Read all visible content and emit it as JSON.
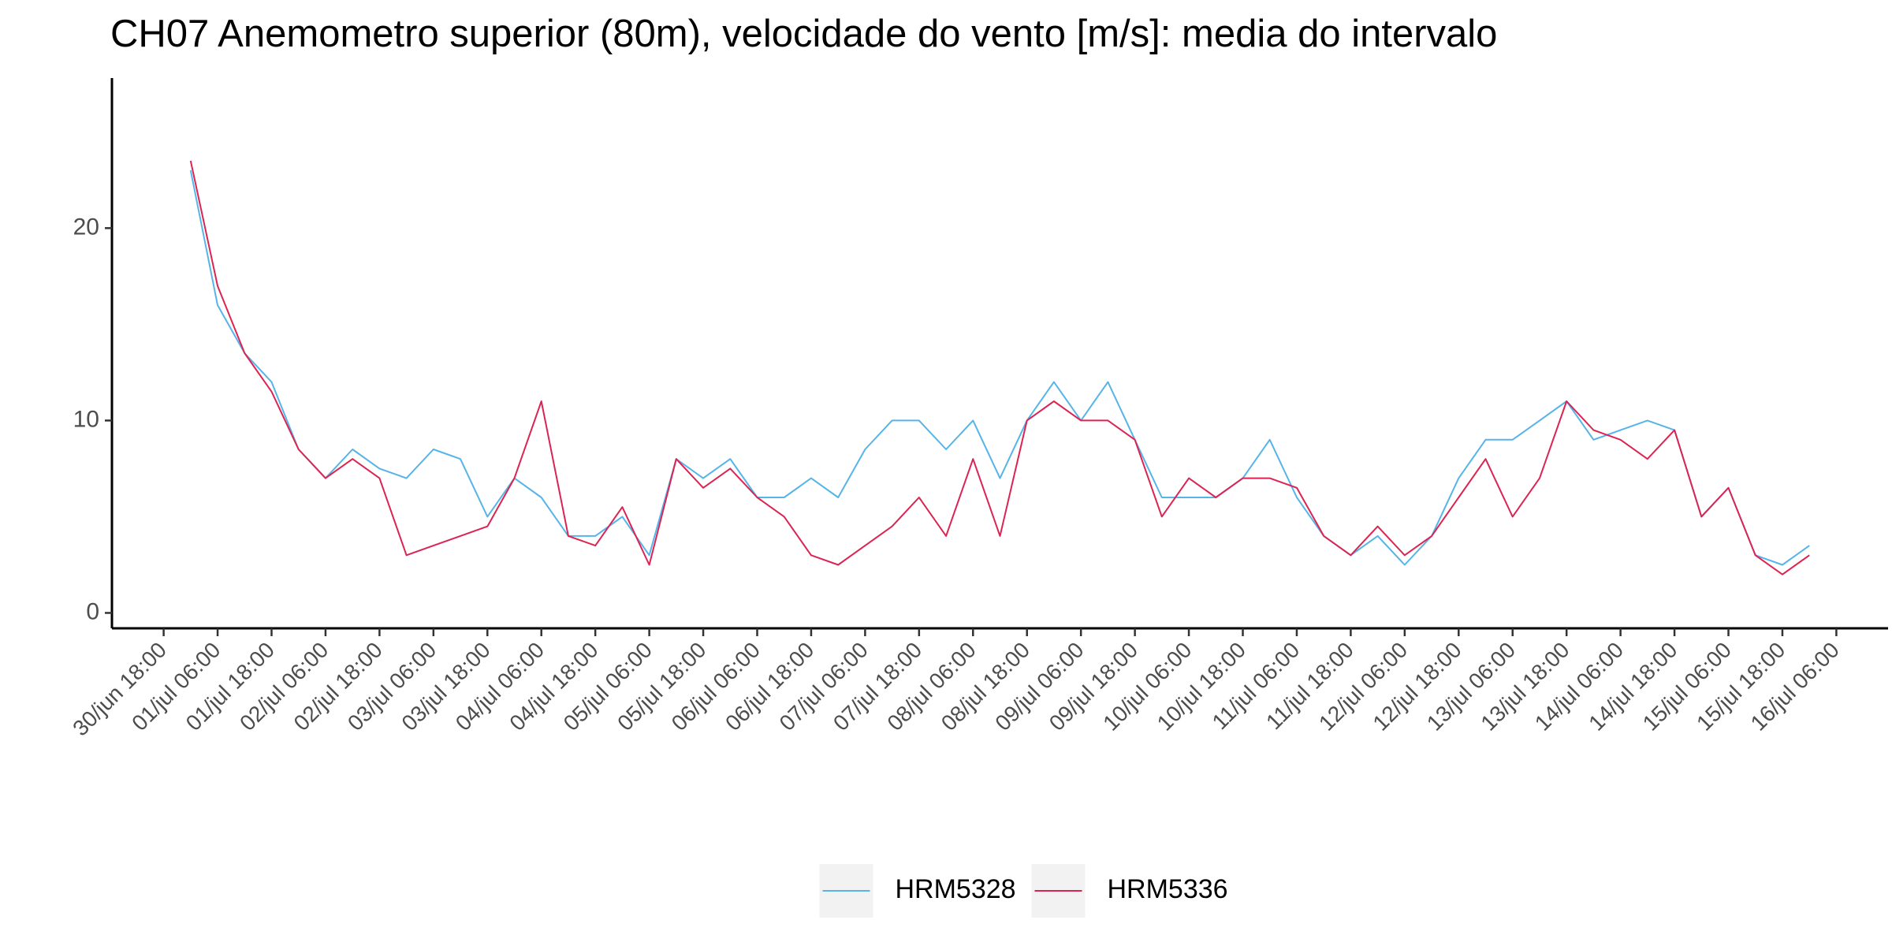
{
  "chart_data": {
    "type": "line",
    "title": "CH07 Anemometro superior (80m), velocidade do vento [m/s]: media do intervalo",
    "x": [
      "01/jul 00:00",
      "01/jul 06:00",
      "01/jul 12:00",
      "01/jul 18:00",
      "02/jul 00:00",
      "02/jul 06:00",
      "02/jul 12:00",
      "02/jul 18:00",
      "03/jul 00:00",
      "03/jul 06:00",
      "03/jul 12:00",
      "03/jul 18:00",
      "04/jul 00:00",
      "04/jul 06:00",
      "04/jul 12:00",
      "04/jul 18:00",
      "05/jul 00:00",
      "05/jul 06:00",
      "05/jul 12:00",
      "05/jul 18:00",
      "06/jul 00:00",
      "06/jul 06:00",
      "06/jul 12:00",
      "06/jul 18:00",
      "07/jul 00:00",
      "07/jul 06:00",
      "07/jul 12:00",
      "07/jul 18:00",
      "08/jul 00:00",
      "08/jul 06:00",
      "08/jul 12:00",
      "08/jul 18:00",
      "09/jul 00:00",
      "09/jul 06:00",
      "09/jul 12:00",
      "09/jul 18:00",
      "10/jul 00:00",
      "10/jul 06:00",
      "10/jul 12:00",
      "10/jul 18:00",
      "11/jul 00:00",
      "11/jul 06:00",
      "11/jul 12:00",
      "11/jul 18:00",
      "12/jul 00:00",
      "12/jul 06:00",
      "12/jul 12:00",
      "12/jul 18:00",
      "13/jul 00:00",
      "13/jul 06:00",
      "13/jul 12:00",
      "13/jul 18:00",
      "14/jul 00:00",
      "14/jul 06:00",
      "14/jul 12:00",
      "14/jul 18:00",
      "15/jul 00:00",
      "15/jul 06:00",
      "15/jul 12:00",
      "15/jul 18:00",
      "16/jul 00:00"
    ],
    "series": [
      {
        "name": "HRM5328",
        "color": "#56b4e9",
        "values": [
          23,
          16,
          13.5,
          12,
          8.5,
          7,
          8.5,
          7.5,
          7,
          8.5,
          8,
          5,
          7,
          6,
          4,
          4,
          5,
          3,
          8,
          7,
          8,
          6,
          6,
          7,
          6,
          8.5,
          10,
          10,
          8.5,
          10,
          7,
          10,
          12,
          10,
          12,
          9,
          6,
          6,
          6,
          7,
          9,
          6,
          4,
          3,
          4,
          2.5,
          4,
          7,
          9,
          9,
          10,
          11,
          9,
          9.5,
          10,
          9.5,
          5,
          6.5,
          3,
          2.5,
          3.5
        ]
      },
      {
        "name": "HRM5336",
        "color": "#dc2453",
        "values": [
          23.5,
          17,
          13.5,
          11.5,
          8.5,
          7,
          8,
          7,
          3,
          3.5,
          4,
          4.5,
          7,
          11,
          4,
          3.5,
          5.5,
          2.5,
          8,
          6.5,
          7.5,
          6,
          5,
          3,
          2.5,
          3.5,
          4.5,
          6,
          4,
          8,
          4,
          10,
          11,
          10,
          10,
          9,
          5,
          7,
          6,
          7,
          7,
          6.5,
          4,
          3,
          4.5,
          3,
          4,
          6,
          8,
          5,
          7,
          11,
          9.5,
          9,
          8,
          9.5,
          5,
          6.5,
          3,
          2,
          3
        ]
      }
    ],
    "xlim": [
      "30/jun 06:30",
      "16/jul 17:30"
    ],
    "xticks": [
      "30/jun 18:00",
      "01/jul 06:00",
      "01/jul 18:00",
      "02/jul 06:00",
      "02/jul 18:00",
      "03/jul 06:00",
      "03/jul 18:00",
      "04/jul 06:00",
      "04/jul 18:00",
      "05/jul 06:00",
      "05/jul 18:00",
      "06/jul 06:00",
      "06/jul 18:00",
      "07/jul 06:00",
      "07/jul 18:00",
      "08/jul 06:00",
      "08/jul 18:00",
      "09/jul 06:00",
      "09/jul 18:00",
      "10/jul 06:00",
      "10/jul 18:00",
      "11/jul 06:00",
      "11/jul 18:00",
      "12/jul 06:00",
      "12/jul 18:00",
      "13/jul 06:00",
      "13/jul 18:00",
      "14/jul 06:00",
      "14/jul 18:00",
      "15/jul 06:00",
      "15/jul 18:00",
      "16/jul 06:00"
    ],
    "ylim": [
      -0.8,
      27.8
    ],
    "yticks": [
      0,
      10,
      20
    ],
    "legend": "bottom"
  }
}
